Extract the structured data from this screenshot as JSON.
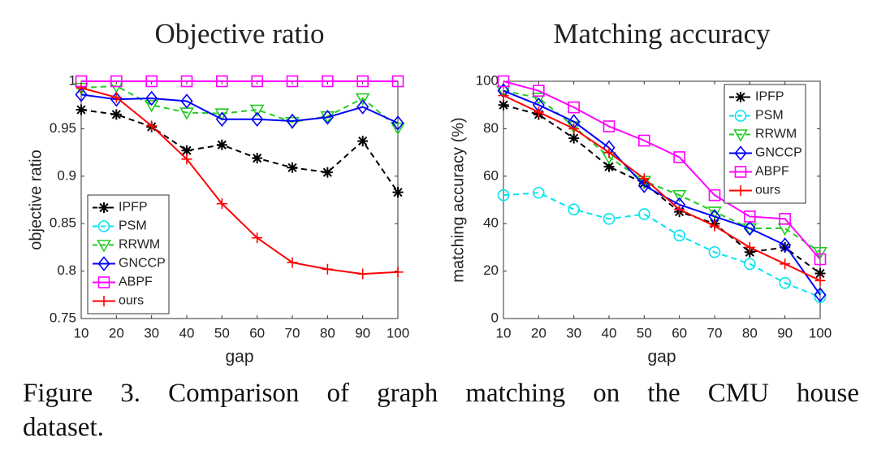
{
  "chart_data": [
    {
      "type": "line",
      "title": "Objective ratio",
      "xlabel": "gap",
      "ylabel": "objective ratio",
      "x": [
        10,
        20,
        30,
        40,
        50,
        60,
        70,
        80,
        90,
        100
      ],
      "xlim": [
        10,
        100
      ],
      "xticks": [
        10,
        20,
        30,
        40,
        50,
        60,
        70,
        80,
        90,
        100
      ],
      "ylim": [
        0.75,
        1
      ],
      "yticks": [
        0.75,
        0.8,
        0.85,
        0.9,
        0.95,
        1
      ],
      "legend": "lower left",
      "series": [
        {
          "name": "IPFP",
          "color": "#000000",
          "marker": "asterisk",
          "dashed": true,
          "values": [
            0.97,
            0.965,
            0.952,
            0.927,
            0.933,
            0.919,
            0.909,
            0.904,
            0.937,
            0.883
          ]
        },
        {
          "name": "PSM",
          "color": "#00e5ee",
          "marker": "circle",
          "dashed": true,
          "values": [
            null,
            null,
            null,
            null,
            null,
            null,
            null,
            null,
            null,
            null
          ]
        },
        {
          "name": "RRWM",
          "color": "#22cc22",
          "marker": "triangle-down",
          "dashed": true,
          "values": [
            0.993,
            0.995,
            0.975,
            0.967,
            0.966,
            0.97,
            0.957,
            0.963,
            0.982,
            0.951
          ]
        },
        {
          "name": "GNCCP",
          "color": "#0000ff",
          "marker": "diamond",
          "dashed": false,
          "values": [
            0.986,
            0.981,
            0.982,
            0.979,
            0.96,
            0.96,
            0.958,
            0.962,
            0.973,
            0.956
          ]
        },
        {
          "name": "ABPF",
          "color": "#ff00ff",
          "marker": "square",
          "dashed": false,
          "values": [
            1,
            1,
            1,
            1,
            1,
            1,
            1,
            1,
            1,
            1
          ]
        },
        {
          "name": "ours",
          "color": "#ff0000",
          "marker": "plus",
          "dashed": false,
          "values": [
            0.993,
            0.983,
            0.953,
            0.918,
            0.871,
            0.835,
            0.809,
            0.802,
            0.797,
            0.799
          ]
        }
      ]
    },
    {
      "type": "line",
      "title": "Matching accuracy",
      "xlabel": "gap",
      "ylabel": "matching accuracy (%)",
      "x": [
        10,
        20,
        30,
        40,
        50,
        60,
        70,
        80,
        90,
        100
      ],
      "xlim": [
        10,
        100
      ],
      "xticks": [
        10,
        20,
        30,
        40,
        50,
        60,
        70,
        80,
        90,
        100
      ],
      "ylim": [
        0,
        100
      ],
      "yticks": [
        0,
        20,
        40,
        60,
        80,
        100
      ],
      "legend": "upper right",
      "series": [
        {
          "name": "IPFP",
          "color": "#000000",
          "marker": "asterisk",
          "dashed": true,
          "values": [
            90,
            86,
            76,
            64,
            57,
            45,
            40,
            28,
            30,
            19
          ]
        },
        {
          "name": "PSM",
          "color": "#00e5ee",
          "marker": "circle",
          "dashed": true,
          "values": [
            52,
            53,
            46,
            42,
            44,
            35,
            28,
            23,
            15,
            9
          ]
        },
        {
          "name": "RRWM",
          "color": "#22cc22",
          "marker": "triangle-down",
          "dashed": true,
          "values": [
            96,
            93,
            81,
            68,
            58,
            52,
            45,
            38,
            38,
            28
          ]
        },
        {
          "name": "GNCCP",
          "color": "#0000ff",
          "marker": "diamond",
          "dashed": false,
          "values": [
            96,
            90,
            83,
            72,
            56,
            48,
            43,
            38,
            31,
            10
          ]
        },
        {
          "name": "ABPF",
          "color": "#ff00ff",
          "marker": "square",
          "dashed": false,
          "values": [
            100,
            96,
            89,
            81,
            75,
            68,
            52,
            43,
            42,
            25
          ]
        },
        {
          "name": "ours",
          "color": "#ff0000",
          "marker": "plus",
          "dashed": false,
          "values": [
            94,
            87,
            80,
            70,
            59,
            46,
            39,
            30,
            23,
            16
          ]
        }
      ]
    }
  ],
  "caption": {
    "lines": [
      "Figure 3. Comparison of graph matching on the CMU house",
      "dataset."
    ]
  }
}
